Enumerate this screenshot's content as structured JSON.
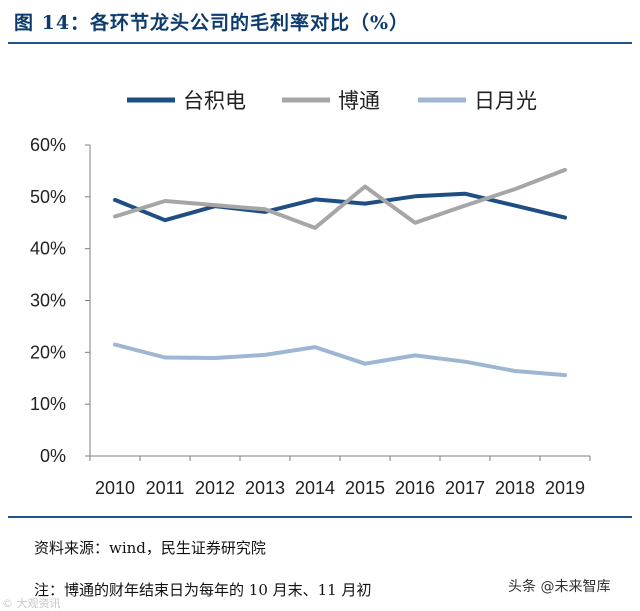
{
  "figure_title": "图 14：各环节龙头公司的毛利率对比（%）",
  "source_note": "资料来源：wind，民生证券研究院",
  "remark_note": "注：博通的财年结束日为每年的 10 月末、11 月初",
  "watermark_left": "© 大观资讯",
  "watermark_right": "头条 @未来智库",
  "chart_data": {
    "type": "line",
    "title": "",
    "xlabel": "",
    "ylabel": "",
    "x": [
      "2010",
      "2011",
      "2012",
      "2013",
      "2014",
      "2015",
      "2016",
      "2017",
      "2018",
      "2019"
    ],
    "ylim": [
      0,
      60
    ],
    "yticks": [
      0,
      10,
      20,
      30,
      40,
      50,
      60
    ],
    "ytick_labels": [
      "0%",
      "10%",
      "20%",
      "30%",
      "40%",
      "50%",
      "60%"
    ],
    "grid": false,
    "legend_position": "top",
    "series": [
      {
        "name": "台积电",
        "color": "#1f4e83",
        "values": [
          49.4,
          45.5,
          48.2,
          47.1,
          49.5,
          48.7,
          50.1,
          50.6,
          48.3,
          46.0
        ]
      },
      {
        "name": "博通",
        "color": "#a6a6a6",
        "values": [
          46.2,
          49.2,
          48.4,
          47.6,
          44.0,
          52.0,
          45.0,
          48.3,
          51.5,
          55.2
        ]
      },
      {
        "name": "日月光",
        "color": "#9fb6d3",
        "values": [
          21.5,
          19.0,
          18.9,
          19.5,
          21.0,
          17.8,
          19.4,
          18.2,
          16.4,
          15.6
        ]
      }
    ]
  }
}
